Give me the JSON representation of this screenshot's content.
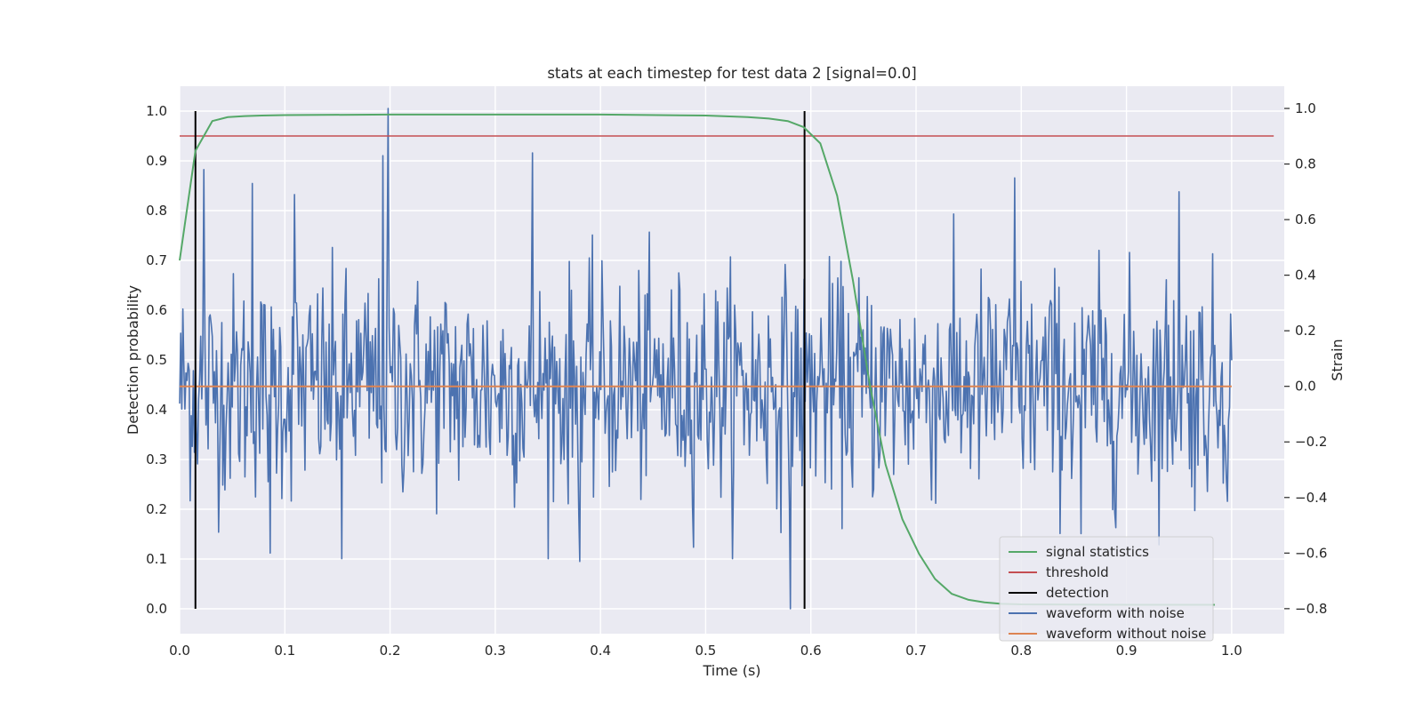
{
  "chart_data": {
    "type": "line",
    "title": "stats at each timestep for test data 2 [signal=0.0]",
    "xlabel": "Time (s)",
    "ylabel": "Detection probability",
    "ylabel_right": "Strain",
    "xlim": [
      0.0,
      1.05
    ],
    "ylim": [
      -0.05,
      1.05
    ],
    "ylim_right": [
      -0.89,
      1.08
    ],
    "x_ticks": [
      "0.0",
      "0.1",
      "0.2",
      "0.3",
      "0.4",
      "0.5",
      "0.6",
      "0.7",
      "0.8",
      "0.9",
      "1.0"
    ],
    "y_ticks": [
      "0.0",
      "0.1",
      "0.2",
      "0.3",
      "0.4",
      "0.5",
      "0.6",
      "0.7",
      "0.8",
      "0.9",
      "1.0"
    ],
    "y_ticks_right": [
      "−0.8",
      "−0.6",
      "−0.4",
      "−0.2",
      "0.0",
      "0.2",
      "0.4",
      "0.6",
      "0.8",
      "1.0"
    ],
    "grid": true,
    "legend_position": "lower-right",
    "legend": [
      {
        "label": "signal statistics",
        "color": "#55a868"
      },
      {
        "label": "threshold",
        "color": "#c44e52"
      },
      {
        "label": "detection",
        "color": "#000000"
      },
      {
        "label": "waveform with noise",
        "color": "#4c72b0"
      },
      {
        "label": "waveform without noise",
        "color": "#dd8452"
      }
    ],
    "series": [
      {
        "name": "signal statistics",
        "axis": "left",
        "color": "#55a868",
        "x": [
          0.0,
          0.015,
          0.031,
          0.046,
          0.062,
          0.078,
          0.1,
          0.2,
          0.3,
          0.4,
          0.5,
          0.54,
          0.56,
          0.578,
          0.593,
          0.609,
          0.625,
          0.64,
          0.656,
          0.671,
          0.687,
          0.703,
          0.718,
          0.734,
          0.75,
          0.765,
          0.781,
          0.8,
          0.9,
          0.95,
          0.984
        ],
        "y": [
          0.7,
          0.92,
          0.98,
          0.988,
          0.99,
          0.991,
          0.992,
          0.993,
          0.993,
          0.993,
          0.991,
          0.988,
          0.985,
          0.98,
          0.968,
          0.935,
          0.83,
          0.66,
          0.45,
          0.29,
          0.18,
          0.11,
          0.06,
          0.03,
          0.018,
          0.013,
          0.01,
          0.009,
          0.008,
          0.008,
          0.008
        ]
      },
      {
        "name": "threshold",
        "axis": "left",
        "color": "#c44e52",
        "x": [
          0.0,
          1.04
        ],
        "y": [
          0.95,
          0.95
        ]
      },
      {
        "name": "waveform without noise",
        "axis": "right",
        "color": "#dd8452",
        "x": [
          0.0,
          1.0
        ],
        "y": [
          0.0,
          0.0
        ]
      },
      {
        "name": "waveform with noise",
        "axis": "right",
        "color": "#4c72b0",
        "x_start": 0.0,
        "x_end": 1.0,
        "n": 1000,
        "std": 0.2,
        "peaks": [
          [
            0.198,
            1.0
          ],
          [
            0.227,
            0.0
          ],
          [
            0.193,
            0.83
          ],
          [
            0.335,
            0.84
          ],
          [
            0.794,
            0.75
          ],
          [
            0.95,
            0.7
          ],
          [
            0.581,
            -0.8
          ],
          [
            0.857,
            -0.53
          ],
          [
            0.38,
            -0.63
          ],
          [
            0.023,
            0.78
          ],
          [
            0.069,
            0.73
          ],
          [
            0.086,
            -0.6
          ],
          [
            0.154,
            -0.62
          ],
          [
            0.109,
            0.69
          ]
        ]
      }
    ],
    "detections": [
      0.015,
      0.594
    ]
  }
}
